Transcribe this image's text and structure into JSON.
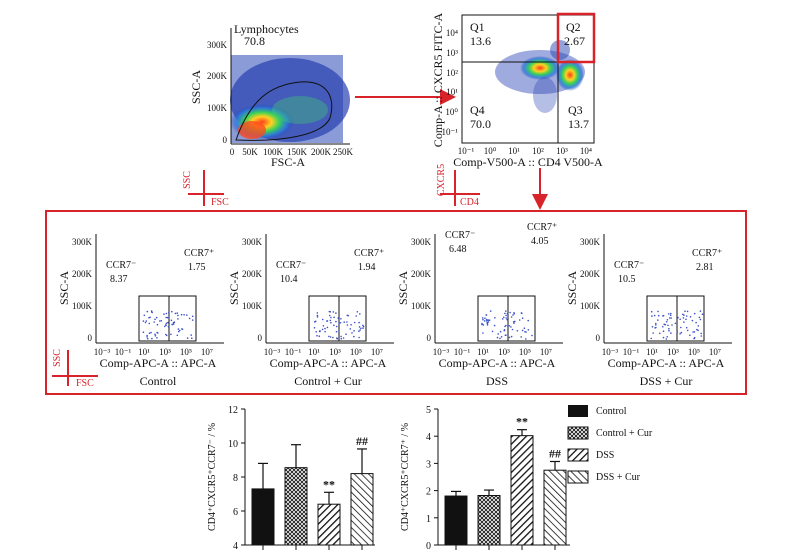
{
  "flow_top": {
    "lymph": {
      "gate_label": "Lymphocytes",
      "gate_value": "70.8",
      "ylabel": "SSC-A",
      "xlabel": "FSC-A",
      "yticks": [
        "300K",
        "200K",
        "100K",
        "0"
      ],
      "xticks": [
        "0",
        "50K",
        "100K",
        "150K",
        "200K",
        "250K"
      ]
    },
    "quad": {
      "ylabel": "Comp-A :: CXCR5 FITC-A",
      "xlabel": "Comp-V500-A :: CD4 V500-A",
      "q1": {
        "name": "Q1",
        "value": "13.6"
      },
      "q2": {
        "name": "Q2",
        "value": "2.67"
      },
      "q3": {
        "name": "Q3",
        "value": "13.7"
      },
      "q4": {
        "name": "Q4",
        "value": "70.0"
      },
      "yticks": [
        "10⁴",
        "10³",
        "10²",
        "10¹",
        "10⁰",
        "10⁻¹"
      ],
      "xticks": [
        "10⁻¹",
        "10⁰",
        "10¹",
        "10²",
        "10³",
        "10⁴"
      ]
    },
    "axis_marker_left": {
      "y": "SSC",
      "x": "FSC"
    },
    "axis_marker_right": {
      "y": "CXCR5",
      "x": "CD4"
    }
  },
  "panel": {
    "ylabel": "SSC-A",
    "xlabel": "Comp-APC-A :: APC-A",
    "yticks": [
      "300K",
      "200K",
      "100K",
      "0"
    ],
    "xticks": [
      "10⁻³",
      "10⁻¹",
      "10¹",
      "10³",
      "10⁵",
      "10⁷"
    ],
    "marker": {
      "y": "SSC",
      "x": "FSC"
    },
    "plots": [
      {
        "title": "Control",
        "neg_label": "CCR7⁻",
        "neg_value": "8.37",
        "pos_label": "CCR7⁺",
        "pos_value": "1.75"
      },
      {
        "title": "Control + Cur",
        "neg_label": "CCR7⁻",
        "neg_value": "10.4",
        "pos_label": "CCR7⁺",
        "pos_value": "1.94"
      },
      {
        "title": "DSS",
        "neg_label": "CCR7⁻",
        "neg_value": "6.48",
        "pos_label": "CCR7⁺",
        "pos_value": "4.05"
      },
      {
        "title": "DSS + Cur",
        "neg_label": "CCR7⁻",
        "neg_value": "10.5",
        "pos_label": "CCR7⁺",
        "pos_value": "2.81"
      }
    ]
  },
  "chart_data": [
    {
      "type": "bar",
      "ylabel": "CD4⁺CXCR5⁺CCR7⁻ / %",
      "ylim": [
        4,
        12
      ],
      "yticks": [
        "4",
        "6",
        "8",
        "10",
        "12"
      ],
      "categories": [
        "Control",
        "Control + Cur",
        "DSS",
        "DSS + Cur"
      ],
      "values": [
        7.3,
        8.55,
        6.4,
        8.2
      ],
      "errors": [
        1.5,
        1.35,
        0.7,
        1.45
      ],
      "annotations": [
        "",
        "",
        "**",
        "##"
      ]
    },
    {
      "type": "bar",
      "ylabel": "CD4⁺CXCR5⁺CCR7⁺ / %",
      "ylim": [
        0,
        5
      ],
      "yticks": [
        "0",
        "1",
        "2",
        "3",
        "4",
        "5"
      ],
      "categories": [
        "Control",
        "Control + Cur",
        "DSS",
        "DSS + Cur"
      ],
      "values": [
        1.8,
        1.82,
        4.02,
        2.75
      ],
      "errors": [
        0.17,
        0.2,
        0.22,
        0.32
      ],
      "annotations": [
        "",
        "",
        "**",
        "##"
      ]
    }
  ],
  "legend": [
    "Control",
    "Control + Cur",
    "DSS",
    "DSS + Cur"
  ],
  "colors": {
    "accent": "#d9232a",
    "bar_dark": "#111111"
  }
}
